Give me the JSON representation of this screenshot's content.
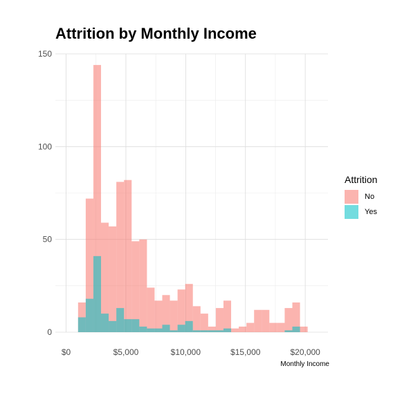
{
  "chart_data": {
    "type": "histogram",
    "title": "Attrition by Monthly Income",
    "xlabel": "Monthly Income",
    "ylabel": "",
    "xlim": [
      0,
      22000
    ],
    "ylim": [
      0,
      150
    ],
    "x_ticks": [
      0,
      5000,
      10000,
      15000,
      20000
    ],
    "x_tick_labels": [
      "$0",
      "$5,000",
      "$10,000",
      "$15,000",
      "$20,000"
    ],
    "y_ticks": [
      0,
      50,
      100,
      150
    ],
    "y_tick_labels": [
      "0",
      "50",
      "100",
      "150"
    ],
    "grid": true,
    "legend_position": "right",
    "legend_title": "Attrition",
    "bin_edges": [
      1000,
      1640,
      2280,
      2920,
      3560,
      4200,
      4840,
      5480,
      6120,
      6760,
      7400,
      8040,
      8680,
      9320,
      9960,
      10600,
      11240,
      11880,
      12520,
      13160,
      13800,
      14440,
      15080,
      15720,
      16360,
      17000,
      17640,
      18280,
      18920,
      19560,
      20200
    ],
    "series": [
      {
        "name": "No",
        "color": "#F8766D",
        "values": [
          16,
          72,
          144,
          59,
          57,
          81,
          82,
          49,
          50,
          24,
          17,
          20,
          17,
          23,
          26,
          14,
          10,
          3,
          13,
          17,
          2,
          3,
          5,
          12,
          12,
          5,
          5,
          13,
          16,
          3
        ]
      },
      {
        "name": "Yes",
        "color": "#00BFC4",
        "values": [
          8,
          18,
          41,
          10,
          6,
          13,
          7,
          7,
          3,
          2,
          2,
          4,
          1,
          4,
          6,
          1,
          1,
          1,
          1,
          2,
          0,
          0,
          0,
          0,
          0,
          0,
          0,
          1,
          3,
          0
        ]
      }
    ]
  }
}
